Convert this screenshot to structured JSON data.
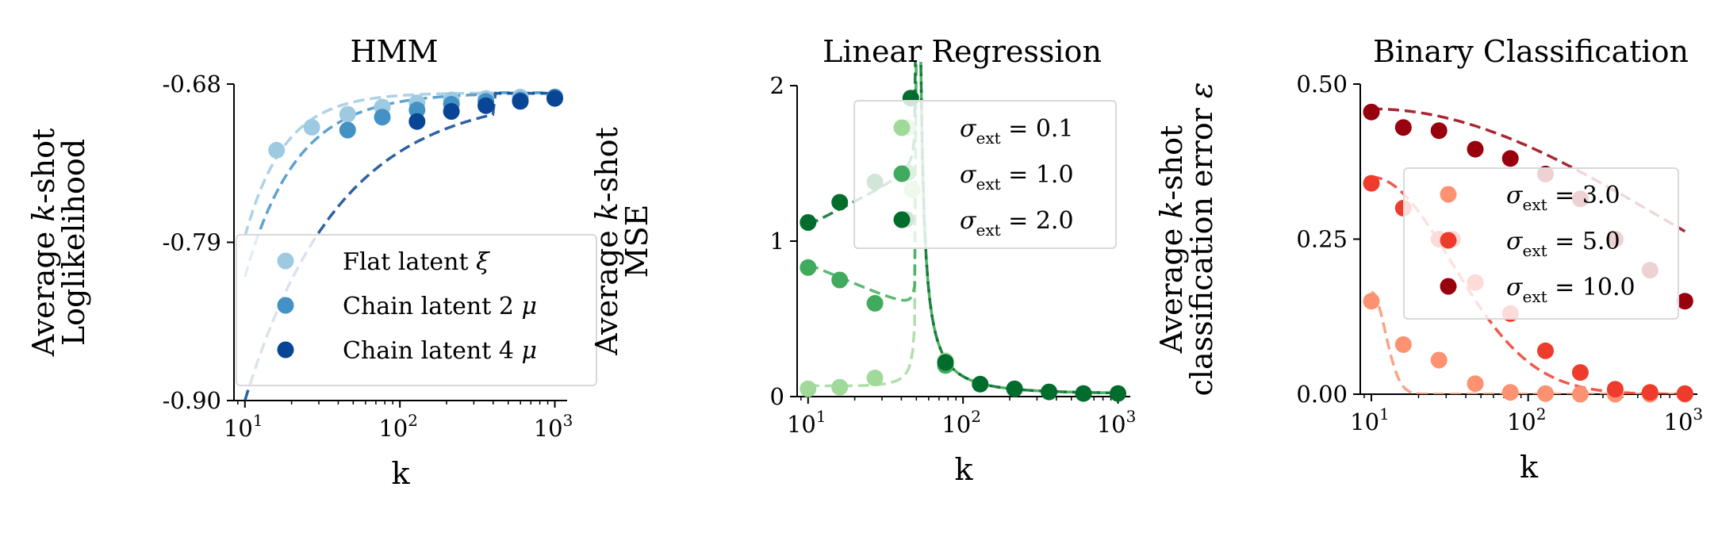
{
  "chart_data": [
    {
      "type": "scatter",
      "title": "HMM",
      "ylabel_lines": [
        "Average k-shot",
        "Loglikelihood"
      ],
      "xlabel": "k",
      "xscale": "log",
      "xlim": [
        8.5,
        1200
      ],
      "ylim": [
        -0.9,
        -0.68
      ],
      "yticks": [
        -0.9,
        -0.79,
        -0.68
      ],
      "ytick_labels": [
        "-0.90",
        "-0.79",
        "-0.68"
      ],
      "xticks": [
        10,
        100,
        1000
      ],
      "legend_position": "lower-right",
      "series": [
        {
          "name": "Flat latent ξ",
          "color": "#9ecae1",
          "points": [
            [
              16,
              -0.726
            ],
            [
              27,
              -0.71
            ],
            [
              46,
              -0.701
            ],
            [
              77,
              -0.696
            ],
            [
              129,
              -0.693
            ],
            [
              215,
              -0.691
            ],
            [
              359,
              -0.69
            ],
            [
              599,
              -0.689
            ],
            [
              1000,
              -0.689
            ]
          ],
          "fit": {
            "a": -0.686,
            "b": -0.1,
            "k0": 10,
            "r": 0.7
          }
        },
        {
          "name": "Chain latent 2 μ",
          "color": "#4292c6",
          "points": [
            [
              46,
              -0.712
            ],
            [
              77,
              -0.703
            ],
            [
              129,
              -0.698
            ],
            [
              215,
              -0.694
            ],
            [
              359,
              -0.692
            ],
            [
              599,
              -0.691
            ],
            [
              1000,
              -0.689
            ]
          ],
          "fit": {
            "a": -0.686,
            "b": -0.128,
            "k0": 10,
            "r": 0.76
          }
        },
        {
          "name": "Chain latent 4 μ",
          "color": "#084594",
          "points": [
            [
              129,
              -0.706
            ],
            [
              215,
              -0.699
            ],
            [
              359,
              -0.695
            ],
            [
              599,
              -0.692
            ],
            [
              1000,
              -0.69
            ]
          ],
          "fit": {
            "a": -0.686,
            "b": -0.214,
            "k0": 10,
            "r": 0.86
          }
        }
      ]
    },
    {
      "type": "scatter",
      "title": "Linear Regression",
      "ylabel_lines": [
        "Average k-shot",
        "MSE"
      ],
      "xlabel": "k",
      "xscale": "log",
      "xlim": [
        8.5,
        1200
      ],
      "ylim": [
        0,
        2
      ],
      "yticks": [
        0,
        1,
        2
      ],
      "ytick_labels": [
        "0",
        "1",
        "2"
      ],
      "xticks": [
        10,
        100,
        1000
      ],
      "legend_position": "top-right",
      "series": [
        {
          "name": "σext = 0.1",
          "color": "#a1d99b",
          "points": [
            [
              10,
              0.05
            ],
            [
              16,
              0.06
            ],
            [
              27,
              0.12
            ],
            [
              44,
              1.73
            ],
            [
              47,
              1.33
            ],
            [
              77,
              0.23
            ]
          ]
        },
        {
          "name": "σext = 1.0",
          "color": "#41ab5d",
          "points": [
            [
              10,
              0.83
            ],
            [
              16,
              0.75
            ],
            [
              27,
              0.6
            ],
            [
              44,
              1.44
            ],
            [
              77,
              0.2
            ]
          ]
        },
        {
          "name": "σext = 2.0",
          "color": "#006d2c",
          "points": [
            [
              10,
              1.12
            ],
            [
              16,
              1.25
            ],
            [
              27,
              1.38
            ],
            [
              43,
              1.14
            ],
            [
              46,
              1.92
            ],
            [
              77,
              0.22
            ],
            [
              129,
              0.08
            ],
            [
              215,
              0.05
            ],
            [
              359,
              0.03
            ],
            [
              599,
              0.02
            ],
            [
              1000,
              0.02
            ]
          ]
        }
      ]
    },
    {
      "type": "scatter",
      "title": "Binary Classification",
      "ylabel_lines": [
        "Average k-shot",
        "classification error ε"
      ],
      "xlabel": "k",
      "xscale": "log",
      "xlim": [
        8.5,
        1200
      ],
      "ylim": [
        0,
        0.5
      ],
      "yticks": [
        0,
        0.25,
        0.5
      ],
      "ytick_labels": [
        "0.00",
        "0.25",
        "0.50"
      ],
      "xticks": [
        10,
        100,
        1000
      ],
      "legend_position": "center-right",
      "series": [
        {
          "name": "σext = 3.0",
          "color": "#fc9272",
          "points": [
            [
              10,
              0.15
            ],
            [
              16,
              0.08
            ],
            [
              27,
              0.055
            ],
            [
              46,
              0.017
            ],
            [
              77,
              0.003
            ],
            [
              129,
              0.001
            ],
            [
              215,
              0.0
            ],
            [
              359,
              0.0
            ],
            [
              599,
              0.0
            ],
            [
              1000,
              0.0
            ]
          ],
          "fit": {
            "a": 0.165,
            "c": 0.12
          }
        },
        {
          "name": "σext = 5.0",
          "color": "#ef3b2c",
          "points": [
            [
              10,
              0.34
            ],
            [
              16,
              0.3
            ],
            [
              27,
              0.25
            ],
            [
              33,
              0.25
            ],
            [
              46,
              0.18
            ],
            [
              77,
              0.13
            ],
            [
              129,
              0.07
            ],
            [
              215,
              0.035
            ],
            [
              359,
              0.008
            ],
            [
              599,
              0.003
            ],
            [
              1000,
              0.001
            ]
          ],
          "fit": {
            "a": 0.35,
            "c": 0.38
          }
        },
        {
          "name": "σext = 10.0",
          "color": "#99000d",
          "points": [
            [
              10,
              0.455
            ],
            [
              16,
              0.43
            ],
            [
              27,
              0.425
            ],
            [
              46,
              0.395
            ],
            [
              77,
              0.38
            ],
            [
              129,
              0.355
            ],
            [
              215,
              0.315
            ],
            [
              359,
              0.25
            ],
            [
              599,
              0.2
            ],
            [
              1000,
              0.15
            ]
          ],
          "fit": {
            "a": 0.46,
            "c": 1.4
          }
        }
      ]
    }
  ]
}
